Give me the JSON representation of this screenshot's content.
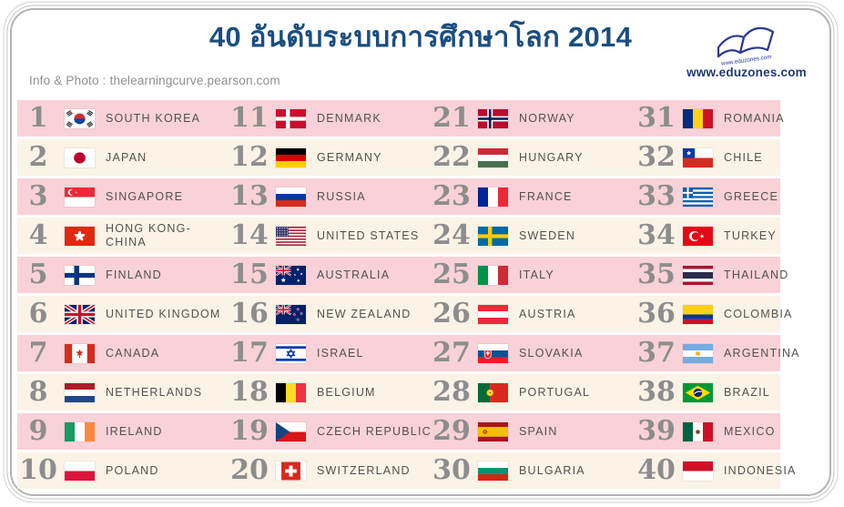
{
  "header": {
    "title": "40 อันดับระบบการศึกษาโลก 2014",
    "subtitle": "Info & Photo : thelearningcurve.pearson.com",
    "website": "www.eduzones.com",
    "logo_icon": "open-book-icon"
  },
  "colors": {
    "title_blue": "#1b4e7e",
    "row_pink": "#f8d2d8",
    "row_cream": "#faf3e6",
    "rank_gray": "#8d8d8d",
    "label_gray": "#57504c",
    "brand_navy": "#2b3990",
    "border_gray": "#b3b3b3"
  },
  "ranking": {
    "entries": [
      {
        "rank": 1,
        "country": "SOUTH KOREA",
        "flag": "south-korea"
      },
      {
        "rank": 2,
        "country": "JAPAN",
        "flag": "japan"
      },
      {
        "rank": 3,
        "country": "SINGAPORE",
        "flag": "singapore"
      },
      {
        "rank": 4,
        "country": "HONG KONG-CHINA",
        "flag": "hong-kong-china"
      },
      {
        "rank": 5,
        "country": "FINLAND",
        "flag": "finland"
      },
      {
        "rank": 6,
        "country": "UNITED KINGDOM",
        "flag": "united-kingdom"
      },
      {
        "rank": 7,
        "country": "CANADA",
        "flag": "canada"
      },
      {
        "rank": 8,
        "country": "NETHERLANDS",
        "flag": "netherlands"
      },
      {
        "rank": 9,
        "country": "IRELAND",
        "flag": "ireland"
      },
      {
        "rank": 10,
        "country": "POLAND",
        "flag": "poland"
      },
      {
        "rank": 11,
        "country": "DENMARK",
        "flag": "denmark"
      },
      {
        "rank": 12,
        "country": "GERMANY",
        "flag": "germany"
      },
      {
        "rank": 13,
        "country": "RUSSIA",
        "flag": "russia"
      },
      {
        "rank": 14,
        "country": "UNITED STATES",
        "flag": "united-states"
      },
      {
        "rank": 15,
        "country": "AUSTRALIA",
        "flag": "australia"
      },
      {
        "rank": 16,
        "country": "NEW ZEALAND",
        "flag": "new-zealand"
      },
      {
        "rank": 17,
        "country": "ISRAEL",
        "flag": "israel"
      },
      {
        "rank": 18,
        "country": "BELGIUM",
        "flag": "belgium"
      },
      {
        "rank": 19,
        "country": "CZECH REPUBLIC",
        "flag": "czech-republic"
      },
      {
        "rank": 20,
        "country": "SWITZERLAND",
        "flag": "switzerland"
      },
      {
        "rank": 21,
        "country": "NORWAY",
        "flag": "norway"
      },
      {
        "rank": 22,
        "country": "HUNGARY",
        "flag": "hungary"
      },
      {
        "rank": 23,
        "country": "FRANCE",
        "flag": "france"
      },
      {
        "rank": 24,
        "country": "SWEDEN",
        "flag": "sweden"
      },
      {
        "rank": 25,
        "country": "ITALY",
        "flag": "italy"
      },
      {
        "rank": 26,
        "country": "AUSTRIA",
        "flag": "austria"
      },
      {
        "rank": 27,
        "country": "SLOVAKIA",
        "flag": "slovakia"
      },
      {
        "rank": 28,
        "country": "PORTUGAL",
        "flag": "portugal"
      },
      {
        "rank": 29,
        "country": "SPAIN",
        "flag": "spain"
      },
      {
        "rank": 30,
        "country": "BULGARIA",
        "flag": "bulgaria"
      },
      {
        "rank": 31,
        "country": "ROMANIA",
        "flag": "romania"
      },
      {
        "rank": 32,
        "country": "CHILE",
        "flag": "chile"
      },
      {
        "rank": 33,
        "country": "GREECE",
        "flag": "greece"
      },
      {
        "rank": 34,
        "country": "TURKEY",
        "flag": "turkey"
      },
      {
        "rank": 35,
        "country": "THAILAND",
        "flag": "thailand"
      },
      {
        "rank": 36,
        "country": "COLOMBIA",
        "flag": "colombia"
      },
      {
        "rank": 37,
        "country": "ARGENTINA",
        "flag": "argentina"
      },
      {
        "rank": 38,
        "country": "BRAZIL",
        "flag": "brazil"
      },
      {
        "rank": 39,
        "country": "MEXICO",
        "flag": "mexico"
      },
      {
        "rank": 40,
        "country": "INDONESIA",
        "flag": "indonesia"
      }
    ]
  }
}
